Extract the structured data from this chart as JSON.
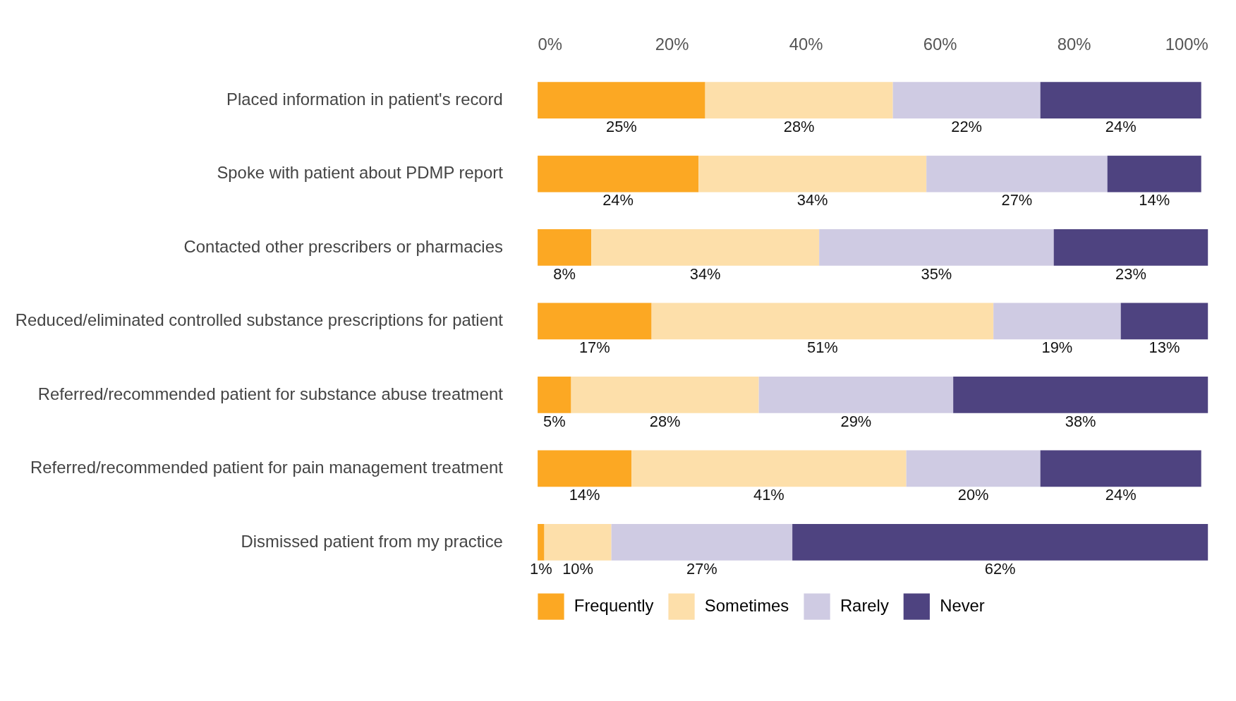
{
  "chart_data": {
    "type": "bar",
    "orientation": "horizontal",
    "stacked": true,
    "grid": false,
    "legend": "bottom",
    "categories": [
      "Placed information in patient's record",
      "Spoke with patient about PDMP report",
      "Contacted other prescribers or pharmacies",
      "Reduced/eliminated controlled substance prescriptions for patient",
      "Referred/recommended patient for substance abuse treatment",
      "Referred/recommended patient for pain management treatment",
      "Dismissed patient from my practice"
    ],
    "series": [
      {
        "name": "Frequently",
        "color": "#fca823",
        "values": [
          25,
          24,
          8,
          17,
          5,
          14,
          1
        ],
        "value_labels": [
          "25%",
          "24%",
          "8%",
          "17%",
          "5%",
          "14%",
          "1%"
        ]
      },
      {
        "name": "Sometimes",
        "color": "#fddfaa",
        "values": [
          28,
          34,
          34,
          51,
          28,
          41,
          10
        ],
        "value_labels": [
          "28%",
          "34%",
          "34%",
          "51%",
          "28%",
          "41%",
          "10%"
        ]
      },
      {
        "name": "Rarely",
        "color": "#cfcbe3",
        "values": [
          22,
          27,
          35,
          19,
          29,
          20,
          27
        ],
        "value_labels": [
          "22%",
          "27%",
          "35%",
          "19%",
          "29%",
          "20%",
          "27%"
        ]
      },
      {
        "name": "Never",
        "color": "#4e4380",
        "values": [
          24,
          14,
          23,
          13,
          38,
          24,
          62
        ],
        "value_labels": [
          "24%",
          "14%",
          "23%",
          "13%",
          "38%",
          "24%",
          "62%"
        ]
      }
    ],
    "xlim": [
      0,
      100
    ],
    "xticks": [
      {
        "value": 0,
        "label": "0%"
      },
      {
        "value": 20,
        "label": "20%"
      },
      {
        "value": 40,
        "label": "40%"
      },
      {
        "value": 60,
        "label": "60%"
      },
      {
        "value": 80,
        "label": "80%"
      },
      {
        "value": 100,
        "label": "100%"
      }
    ]
  }
}
